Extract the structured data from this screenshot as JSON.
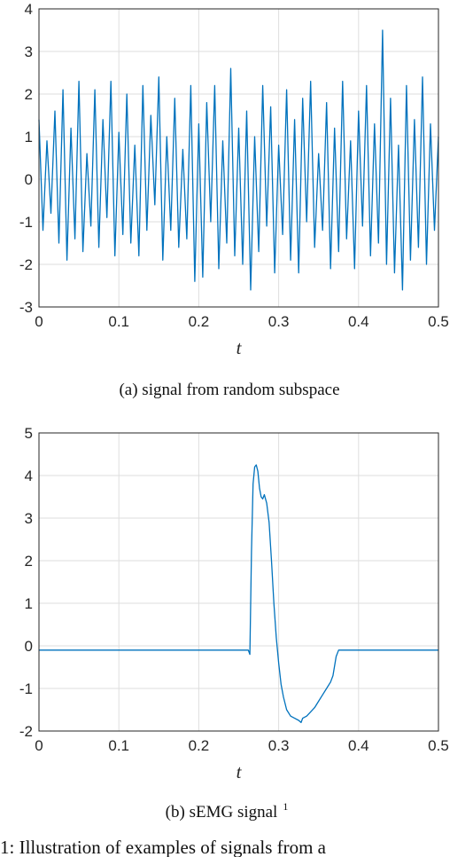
{
  "chart_data": [
    {
      "type": "line",
      "caption": "(a) signal from random subspace",
      "xlabel": "t",
      "xlim": [
        0,
        0.5
      ],
      "ylim": [
        -3,
        4
      ],
      "xticks": [
        "0",
        "0.1",
        "0.2",
        "0.3",
        "0.4",
        "0.5"
      ],
      "yticks": [
        "-3",
        "-2",
        "-1",
        "0",
        "1",
        "2",
        "3",
        "4"
      ],
      "grid": true,
      "color": "#0072bd",
      "series": [
        {
          "x": [
            0.0,
            0.005,
            0.01,
            0.015,
            0.02,
            0.025,
            0.03,
            0.035,
            0.04,
            0.045,
            0.05,
            0.055,
            0.06,
            0.065,
            0.07,
            0.075,
            0.08,
            0.085,
            0.09,
            0.095,
            0.1,
            0.105,
            0.11,
            0.115,
            0.12,
            0.125,
            0.13,
            0.135,
            0.14,
            0.145,
            0.15,
            0.155,
            0.16,
            0.165,
            0.17,
            0.175,
            0.18,
            0.185,
            0.19,
            0.195,
            0.2,
            0.205,
            0.21,
            0.215,
            0.22,
            0.225,
            0.23,
            0.235,
            0.24,
            0.245,
            0.25,
            0.255,
            0.26,
            0.265,
            0.27,
            0.275,
            0.28,
            0.285,
            0.29,
            0.295,
            0.3,
            0.305,
            0.31,
            0.315,
            0.32,
            0.325,
            0.33,
            0.335,
            0.34,
            0.345,
            0.35,
            0.355,
            0.36,
            0.365,
            0.37,
            0.375,
            0.38,
            0.385,
            0.39,
            0.395,
            0.4,
            0.405,
            0.41,
            0.415,
            0.42,
            0.425,
            0.43,
            0.435,
            0.44,
            0.445,
            0.45,
            0.455,
            0.46,
            0.465,
            0.47,
            0.475,
            0.48,
            0.485,
            0.49,
            0.495,
            0.5
          ],
          "y": [
            1.4,
            -1.2,
            0.9,
            -0.8,
            1.6,
            -1.5,
            2.1,
            -1.9,
            1.2,
            -1.4,
            2.3,
            -1.7,
            0.6,
            -1.1,
            2.1,
            -1.6,
            1.4,
            -0.9,
            2.3,
            -1.8,
            1.1,
            -1.3,
            2.0,
            -1.5,
            0.8,
            -1.8,
            2.2,
            -1.2,
            1.5,
            -0.6,
            2.4,
            -1.9,
            1.0,
            -1.2,
            1.9,
            -1.6,
            0.7,
            -1.4,
            2.2,
            -2.4,
            1.3,
            -2.3,
            1.8,
            -1.0,
            2.2,
            -2.1,
            0.9,
            -1.5,
            2.6,
            -1.8,
            1.2,
            -2.0,
            1.6,
            -2.6,
            1.0,
            -1.7,
            2.2,
            -1.1,
            1.7,
            -2.2,
            0.8,
            -1.3,
            2.1,
            -1.9,
            1.4,
            -2.2,
            1.9,
            -1.0,
            2.3,
            -1.6,
            0.6,
            -1.2,
            1.8,
            -2.1,
            1.2,
            -1.7,
            2.3,
            -1.4,
            0.9,
            -2.1,
            1.6,
            -1.1,
            2.2,
            -1.8,
            1.3,
            -1.5,
            3.5,
            -2.0,
            1.9,
            -2.2,
            0.8,
            -2.6,
            2.2,
            -1.9,
            1.4,
            -1.6,
            2.4,
            -2.0,
            1.3,
            -1.2,
            1.0
          ]
        }
      ]
    },
    {
      "type": "line",
      "caption": "(b) sEMG signal",
      "caption_sup": "1",
      "xlabel": "t",
      "xlim": [
        0,
        0.5
      ],
      "ylim": [
        -2,
        5
      ],
      "xticks": [
        "0",
        "0.1",
        "0.2",
        "0.3",
        "0.4",
        "0.5"
      ],
      "yticks": [
        "-2",
        "-1",
        "0",
        "1",
        "2",
        "3",
        "4",
        "5"
      ],
      "grid": true,
      "color": "#0072bd",
      "series": [
        {
          "x": [
            0.0,
            0.262,
            0.264,
            0.266,
            0.268,
            0.27,
            0.272,
            0.274,
            0.276,
            0.278,
            0.28,
            0.282,
            0.285,
            0.288,
            0.291,
            0.294,
            0.297,
            0.3,
            0.303,
            0.306,
            0.31,
            0.315,
            0.32,
            0.325,
            0.328,
            0.33,
            0.335,
            0.34,
            0.345,
            0.35,
            0.355,
            0.36,
            0.365,
            0.368,
            0.372,
            0.375,
            0.5
          ],
          "y": [
            -0.1,
            -0.1,
            -0.2,
            2.2,
            3.8,
            4.2,
            4.25,
            4.1,
            3.7,
            3.5,
            3.45,
            3.55,
            3.35,
            2.9,
            2.0,
            1.0,
            0.2,
            -0.4,
            -0.9,
            -1.2,
            -1.5,
            -1.65,
            -1.7,
            -1.75,
            -1.8,
            -1.7,
            -1.65,
            -1.55,
            -1.45,
            -1.3,
            -1.15,
            -1.0,
            -0.85,
            -0.7,
            -0.25,
            -0.1,
            -0.1
          ]
        }
      ]
    }
  ],
  "figure_caption": "1: Illustration of examples of signals from a"
}
